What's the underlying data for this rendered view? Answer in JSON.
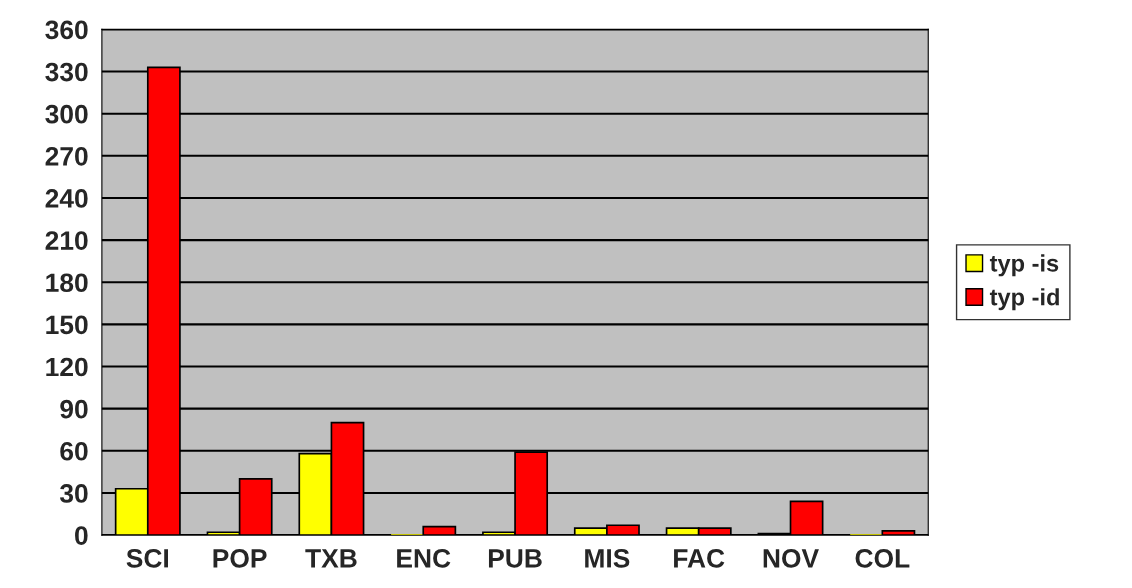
{
  "chart_data": {
    "type": "bar",
    "categories": [
      "SCI",
      "POP",
      "TXB",
      "ENC",
      "PUB",
      "MIS",
      "FAC",
      "NOV",
      "COL"
    ],
    "series": [
      {
        "name": "typ -is",
        "color": "#ffff00",
        "values": [
          33,
          2,
          58,
          0,
          2,
          5,
          5,
          1,
          0
        ]
      },
      {
        "name": "typ -id",
        "color": "#ff0000",
        "values": [
          333,
          40,
          80,
          6,
          59,
          7,
          5,
          24,
          3
        ]
      }
    ],
    "ylim": [
      0,
      360
    ],
    "yticks": [
      0,
      30,
      60,
      90,
      120,
      150,
      180,
      210,
      240,
      270,
      300,
      330,
      360
    ],
    "grid": "y",
    "legend": "right"
  }
}
